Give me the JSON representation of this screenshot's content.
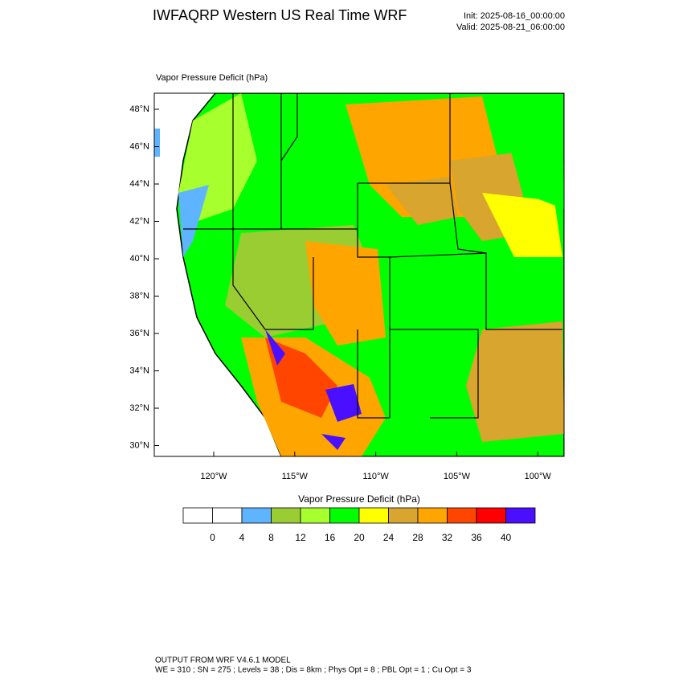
{
  "header": {
    "title": "IWFAQRP Western US Real Time WRF",
    "init": "Init: 2025-08-16_00:00:00",
    "valid": "Valid: 2025-08-21_06:00:00"
  },
  "map": {
    "field_label": "Vapor Pressure Deficit   (hPa)",
    "lat_labels": [
      "48°N",
      "46°N",
      "44°N",
      "42°N",
      "40°N",
      "38°N",
      "36°N",
      "34°N",
      "32°N",
      "30°N"
    ],
    "lon_labels": [
      "120°W",
      "115°W",
      "110°W",
      "105°W",
      "100°W"
    ]
  },
  "colorbar": {
    "title": "Vapor Pressure Deficit  (hPa)",
    "labels": [
      "0",
      "4",
      "8",
      "12",
      "16",
      "20",
      "24",
      "28",
      "32",
      "36",
      "40"
    ],
    "colors": [
      "#ffffff",
      "#ffffff",
      "#5fb4ff",
      "#9acd32",
      "#a8ff2e",
      "#00ff00",
      "#ffff00",
      "#d8a52e",
      "#ffa500",
      "#ff4500",
      "#ff0000",
      "#4a0fff"
    ]
  },
  "footer": {
    "line1": "OUTPUT FROM WRF V4.6.1 MODEL",
    "line2": "WE = 310 ; SN = 275 ; Levels = 38 ; Dis = 8km ; Phys Opt = 8 ; PBL Opt = 1 ; Cu Opt = 3"
  }
}
